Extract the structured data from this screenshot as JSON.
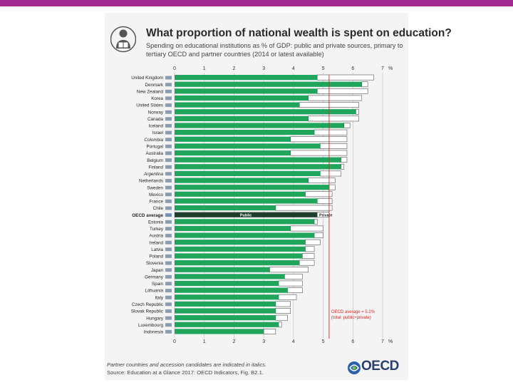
{
  "colors": {
    "top_bar": "#a02a8f",
    "public": "#1fa65c",
    "private": "#ffffff",
    "oecd_bar": "#1e3d2a",
    "annotation": "#d32a2a"
  },
  "header": {
    "icon": "person-reading-icon",
    "title": "What proportion of national wealth is spent on education?",
    "subtitle": "Spending on educational institutions as % of GDP: public and private sources, primary to tertiary OECD and partner countries (2014 or latest available)"
  },
  "chart_data": {
    "type": "bar",
    "orientation": "horizontal",
    "stacked": true,
    "xlim": [
      0,
      7
    ],
    "x_ticks": [
      "0",
      "1",
      "2",
      "3",
      "4",
      "5",
      "6",
      "7"
    ],
    "x_unit": "%",
    "categories": [
      "United Kingdom",
      "Denmark",
      "New Zealand",
      "Korea",
      "United States",
      "Norway",
      "Canada",
      "Iceland",
      "Israel",
      "Colombia",
      "Portugal",
      "Australia",
      "Belgium",
      "Finland",
      "Argentina",
      "Netherlands",
      "Sweden",
      "Mexico",
      "France",
      "Chile",
      "OECD average",
      "Estonia",
      "Turkey",
      "Austria",
      "Ireland",
      "Latvia",
      "Poland",
      "Slovenia",
      "Japan",
      "Germany",
      "Spain",
      "Lithuania",
      "Italy",
      "Czech Republic",
      "Slovak Republic",
      "Hungary",
      "Luxembourg",
      "Indonesia"
    ],
    "italic_categories": [
      "Colombia",
      "Argentina",
      "Lithuania",
      "Indonesia"
    ],
    "series": [
      {
        "name": "Public",
        "values": [
          4.8,
          6.3,
          4.8,
          4.5,
          4.2,
          6.1,
          4.5,
          5.7,
          4.7,
          3.9,
          4.9,
          3.9,
          5.6,
          5.6,
          4.9,
          4.5,
          5.2,
          4.4,
          4.8,
          3.4,
          4.8,
          4.7,
          3.9,
          4.7,
          4.4,
          4.4,
          4.3,
          4.2,
          3.2,
          3.7,
          3.5,
          3.8,
          3.5,
          3.4,
          3.4,
          3.4,
          3.5,
          3.0
        ]
      },
      {
        "name": "Private",
        "values": [
          1.9,
          0.2,
          1.7,
          1.8,
          2.0,
          0.1,
          1.7,
          0.2,
          1.1,
          1.9,
          0.9,
          1.9,
          0.2,
          0.1,
          0.7,
          0.9,
          0.2,
          0.9,
          0.5,
          1.9,
          0.4,
          0.1,
          1.1,
          0.3,
          0.5,
          0.3,
          0.4,
          0.5,
          1.3,
          0.6,
          0.8,
          0.5,
          0.6,
          0.5,
          0.5,
          0.4,
          0.1,
          0.4
        ]
      }
    ],
    "oecd_average_line": 5.2,
    "annotation": [
      "OECD average = 5.2%",
      "(total: public+private)"
    ],
    "highlight_category": "OECD average"
  },
  "footer": {
    "note": "Partner countries and accession candidates are indicated in italics.",
    "source": "Source: Education at a Glance 2017: OECD Indicators, Fig. B2.1.",
    "logo_text": "OECD",
    "logo_icon": "oecd-swirl-icon"
  }
}
